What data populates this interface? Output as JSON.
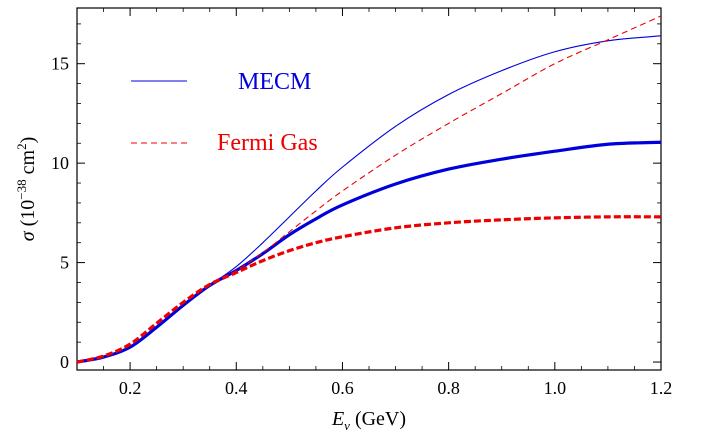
{
  "chart_data": {
    "type": "line",
    "xlabel": "E",
    "xlabel_sub": "ν",
    "xlabel_unit": " (GeV)",
    "ylabel": "σ",
    "ylabel_unit_pre": " (10",
    "ylabel_unit_exp": "−38",
    "ylabel_unit_mid": " cm",
    "ylabel_unit_exp2": "2",
    "ylabel_unit_post": ")",
    "xlim": [
      0.1,
      1.2
    ],
    "ylim": [
      -0.4,
      17.8
    ],
    "x_ticks": [
      "0.2",
      "0.4",
      "0.6",
      "0.8",
      "1.0",
      "1.2"
    ],
    "y_ticks": [
      "0",
      "5",
      "10",
      "15"
    ],
    "legend": {
      "position": "top-left",
      "entries": [
        {
          "label": "MECM",
          "color": "#0000dd",
          "style": "solid"
        },
        {
          "label": "Fermi Gas",
          "color": "#ee0000",
          "style": "dashed"
        }
      ]
    },
    "series": [
      {
        "name": "MECM",
        "color": "#0000dd",
        "style": "solid-thin",
        "x": [
          0.1,
          0.15,
          0.2,
          0.25,
          0.3,
          0.35,
          0.4,
          0.45,
          0.5,
          0.55,
          0.6,
          0.7,
          0.8,
          0.9,
          1.0,
          1.1,
          1.2
        ],
        "y": [
          0.0,
          0.25,
          0.75,
          1.75,
          2.85,
          3.85,
          4.8,
          6.0,
          7.3,
          8.6,
          9.8,
          11.85,
          13.45,
          14.65,
          15.6,
          16.15,
          16.4
        ]
      },
      {
        "name": "MECM",
        "color": "#0000dd",
        "style": "solid-thick",
        "x": [
          0.1,
          0.15,
          0.2,
          0.25,
          0.3,
          0.35,
          0.4,
          0.45,
          0.5,
          0.55,
          0.6,
          0.7,
          0.8,
          0.9,
          1.0,
          1.1,
          1.2
        ],
        "y": [
          0.0,
          0.25,
          0.75,
          1.75,
          2.85,
          3.85,
          4.6,
          5.45,
          6.4,
          7.2,
          7.9,
          8.95,
          9.7,
          10.2,
          10.6,
          10.95,
          11.05
        ]
      },
      {
        "name": "Fermi Gas",
        "color": "#ee0000",
        "style": "dashed-thin",
        "x": [
          0.1,
          0.15,
          0.2,
          0.25,
          0.3,
          0.35,
          0.4,
          0.45,
          0.5,
          0.55,
          0.6,
          0.7,
          0.8,
          0.9,
          1.0,
          1.1,
          1.2
        ],
        "y": [
          0.0,
          0.3,
          0.9,
          1.95,
          3.0,
          3.9,
          4.6,
          5.5,
          6.55,
          7.6,
          8.6,
          10.4,
          12.0,
          13.5,
          15.0,
          16.2,
          17.4
        ]
      },
      {
        "name": "Fermi Gas",
        "color": "#ee0000",
        "style": "dashed-thick",
        "x": [
          0.1,
          0.15,
          0.2,
          0.25,
          0.3,
          0.35,
          0.4,
          0.45,
          0.5,
          0.55,
          0.6,
          0.7,
          0.8,
          0.9,
          1.0,
          1.1,
          1.2
        ],
        "y": [
          0.0,
          0.3,
          0.9,
          1.95,
          3.0,
          3.9,
          4.5,
          5.1,
          5.6,
          6.0,
          6.3,
          6.75,
          7.0,
          7.15,
          7.25,
          7.3,
          7.3
        ]
      }
    ]
  }
}
